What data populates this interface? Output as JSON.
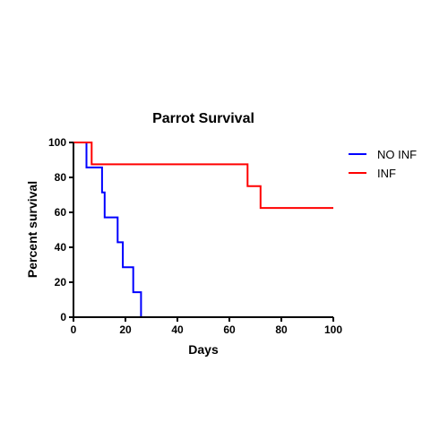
{
  "chart_data": {
    "type": "line",
    "subtype": "kaplan-meier step",
    "title": "Parrot Survival",
    "xlabel": "Days",
    "ylabel": "Percent survival",
    "xlim": [
      0,
      100
    ],
    "ylim": [
      0,
      100
    ],
    "xticks": [
      0,
      20,
      40,
      60,
      80,
      100
    ],
    "yticks": [
      0,
      20,
      40,
      60,
      80,
      100
    ],
    "grid": false,
    "legend_position": "right",
    "series": [
      {
        "name": "NO INF",
        "color": "#0000ff",
        "steps": [
          {
            "x": 0,
            "y": 100
          },
          {
            "x": 5,
            "y": 85.7
          },
          {
            "x": 11,
            "y": 71.4
          },
          {
            "x": 12,
            "y": 57.1
          },
          {
            "x": 17,
            "y": 42.9
          },
          {
            "x": 19,
            "y": 28.6
          },
          {
            "x": 23,
            "y": 14.3
          },
          {
            "x": 26,
            "y": 0
          }
        ]
      },
      {
        "name": "INF",
        "color": "#ff0000",
        "steps": [
          {
            "x": 0,
            "y": 100
          },
          {
            "x": 7,
            "y": 87.5
          },
          {
            "x": 67,
            "y": 75
          },
          {
            "x": 72,
            "y": 62.5
          },
          {
            "x": 100,
            "y": 62.5
          }
        ]
      }
    ]
  }
}
